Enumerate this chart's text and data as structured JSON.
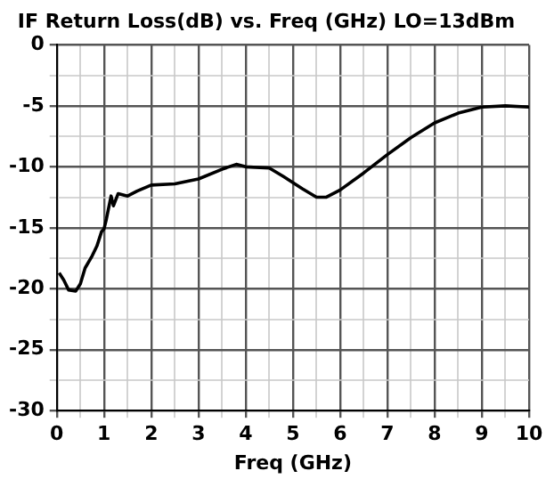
{
  "chart_data": {
    "type": "line",
    "title": "IF Return Loss(dB) vs. Freq (GHz) LO=13dBm",
    "xlabel": "Freq (GHz)",
    "xlim": [
      0,
      10
    ],
    "ylim": [
      -30,
      0
    ],
    "xticks": [
      0,
      {
        "value": 0.5,
        "label": null
      },
      1,
      {
        "value": 1.5,
        "label": null
      },
      2,
      {
        "value": 2.5,
        "label": null
      },
      3,
      {
        "value": 3.5,
        "label": null
      },
      4,
      {
        "value": 4.5,
        "label": null
      },
      5,
      {
        "value": 5.5,
        "label": null
      },
      6,
      {
        "value": 6.5,
        "label": null
      },
      7,
      {
        "value": 7.5,
        "label": null
      },
      8,
      {
        "value": 8.5,
        "label": null
      },
      9,
      {
        "value": 9.5,
        "label": null
      },
      10
    ],
    "yticks": [
      -30,
      {
        "value": -27.5,
        "label": null
      },
      -25,
      {
        "value": -22.5,
        "label": null
      },
      -20,
      {
        "value": -17.5,
        "label": null
      },
      -15,
      {
        "value": -12.5,
        "label": null
      },
      -10,
      {
        "value": -7.5,
        "label": null
      },
      -5,
      {
        "value": -2.5,
        "label": null
      },
      0
    ],
    "grid": true,
    "legend": false,
    "marker": "none",
    "line_style": "solid",
    "series": [
      {
        "color": "#000000",
        "x": [
          0.05,
          0.15,
          0.25,
          0.4,
          0.5,
          0.6,
          0.75,
          0.85,
          0.95,
          1.0,
          1.05,
          1.15,
          1.2,
          1.3,
          1.5,
          1.7,
          2.0,
          2.5,
          3.0,
          3.5,
          3.8,
          4.0,
          4.5,
          4.8,
          5.2,
          5.5,
          5.7,
          6.0,
          6.5,
          7.0,
          7.5,
          8.0,
          8.5,
          9.0,
          9.5,
          10
        ],
        "values": [
          -18.7,
          -19.3,
          -20.1,
          -20.2,
          -19.6,
          -18.3,
          -17.3,
          -16.5,
          -15.3,
          -15.1,
          -14.3,
          -12.4,
          -13.2,
          -12.2,
          -12.4,
          -12.0,
          -11.5,
          -11.4,
          -11.0,
          -10.2,
          -9.8,
          -10.0,
          -10.1,
          -10.8,
          -11.8,
          -12.5,
          -12.5,
          -11.9,
          -10.5,
          -9.0,
          -7.6,
          -6.4,
          -5.6,
          -5.1,
          -5.0,
          -5.1
        ]
      }
    ]
  }
}
